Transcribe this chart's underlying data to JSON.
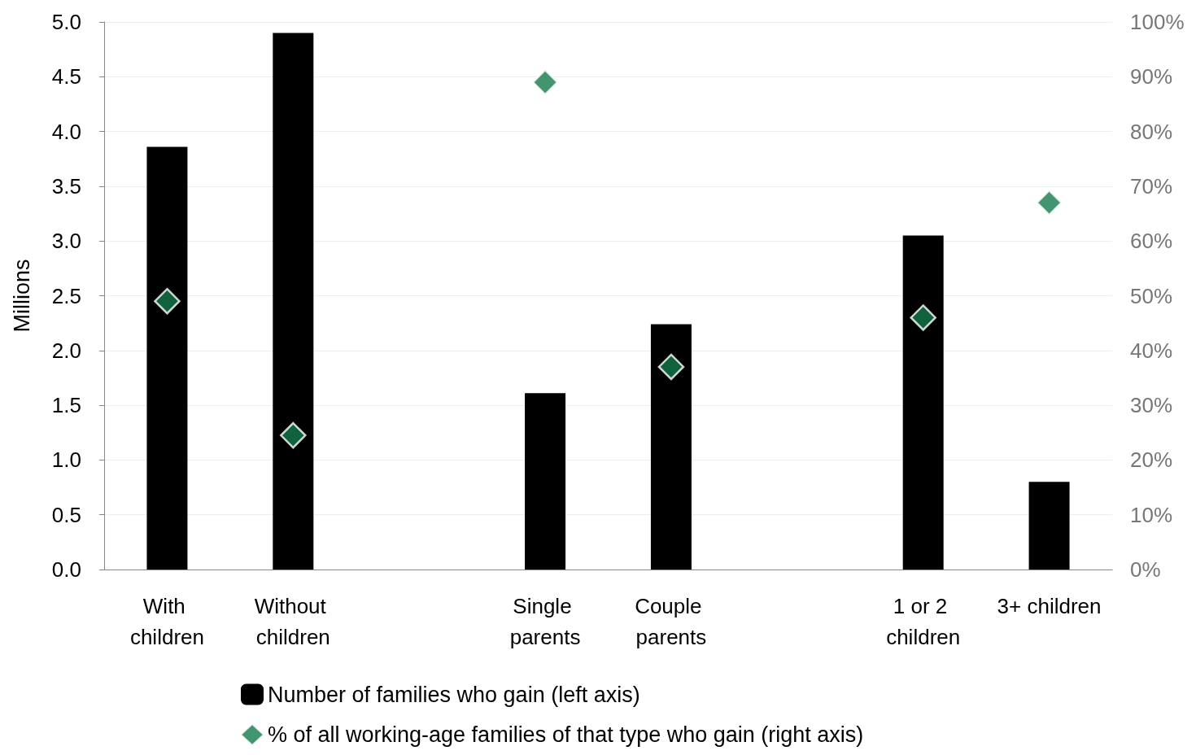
{
  "chart_data": {
    "type": "bar",
    "ylabel": "Millions",
    "categories": [
      "With children",
      "Without children",
      null,
      "Single parents",
      "Couple parents",
      null,
      "1 or 2 children",
      "3+ children"
    ],
    "series": [
      {
        "name": "Number of families who gain (left axis)",
        "color": "#000000",
        "values": [
          3.86,
          4.9,
          null,
          1.61,
          2.24,
          null,
          3.05,
          0.8
        ]
      },
      {
        "name": "% of all working-age families of that type who gain (right axis)",
        "type": "scatter",
        "axis": "y2",
        "color": "#137a4a",
        "values": [
          49,
          24.5,
          null,
          89,
          37,
          null,
          46,
          67
        ]
      }
    ],
    "ylim": [
      0,
      5
    ],
    "yticks": [
      {
        "value": 0,
        "label": "0.0"
      },
      {
        "value": 0.5,
        "label": "0.5"
      },
      {
        "value": 1,
        "label": "1.0"
      },
      {
        "value": 1.5,
        "label": "1.5"
      },
      {
        "value": 2,
        "label": "2.0"
      },
      {
        "value": 2.5,
        "label": "2.5"
      },
      {
        "value": 3,
        "label": "3.0"
      },
      {
        "value": 3.5,
        "label": "3.5"
      },
      {
        "value": 4,
        "label": "4.0"
      },
      {
        "value": 4.5,
        "label": "4.5"
      },
      {
        "value": 5,
        "label": "5.0"
      }
    ],
    "y2lim": [
      0,
      100
    ],
    "y2ticks": [
      {
        "value": 0,
        "label": "0%"
      },
      {
        "value": 10,
        "label": "10%"
      },
      {
        "value": 20,
        "label": "20%"
      },
      {
        "value": 30,
        "label": "30%"
      },
      {
        "value": 40,
        "label": "40%"
      },
      {
        "value": 50,
        "label": "50%"
      },
      {
        "value": 60,
        "label": "60%"
      },
      {
        "value": 70,
        "label": "70%"
      },
      {
        "value": 80,
        "label": "80%"
      },
      {
        "value": 90,
        "label": "90%"
      },
      {
        "value": 100,
        "label": "100%"
      }
    ],
    "grid": "y",
    "legend": "bottom",
    "marker": "diamond"
  }
}
